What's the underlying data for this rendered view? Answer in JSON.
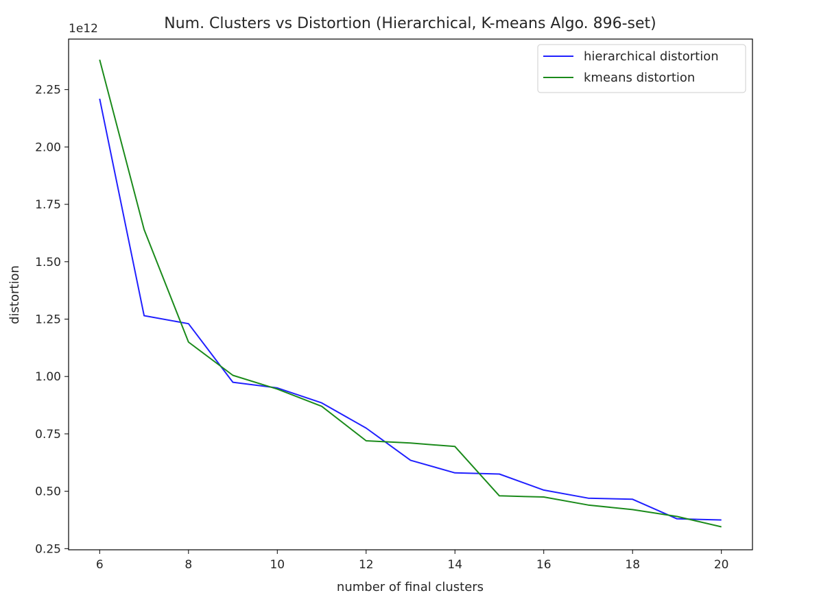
{
  "chart_data": {
    "type": "line",
    "title": "Num. Clusters vs Distortion (Hierarchical, K-means Algo. 896-set)",
    "xlabel": "number of final clusters",
    "ylabel": "distortion",
    "y_scale_label": "1e12",
    "x_ticks": [
      "6",
      "8",
      "10",
      "12",
      "14",
      "16",
      "18",
      "20"
    ],
    "y_ticks": [
      "0.25",
      "0.50",
      "0.75",
      "1.00",
      "1.25",
      "1.50",
      "1.75",
      "2.00",
      "2.25"
    ],
    "xlim": [
      5.3,
      20.7
    ],
    "ylim": [
      0.245,
      2.47
    ],
    "grid": false,
    "legend_position": "top-right",
    "x": [
      6,
      7,
      8,
      9,
      10,
      11,
      12,
      13,
      14,
      15,
      16,
      17,
      18,
      19,
      20
    ],
    "series": [
      {
        "name": "hierarchical distortion",
        "color": "#1f1fff",
        "values": [
          2.21,
          1.265,
          1.23,
          0.975,
          0.95,
          0.885,
          0.775,
          0.635,
          0.58,
          0.575,
          0.505,
          0.47,
          0.465,
          0.38,
          0.375
        ]
      },
      {
        "name": "kmeans distortion",
        "color": "#1a8a1a",
        "values": [
          2.38,
          1.64,
          1.15,
          1.005,
          0.945,
          0.87,
          0.72,
          0.71,
          0.695,
          0.48,
          0.475,
          0.44,
          0.42,
          0.39,
          0.345
        ]
      }
    ]
  }
}
